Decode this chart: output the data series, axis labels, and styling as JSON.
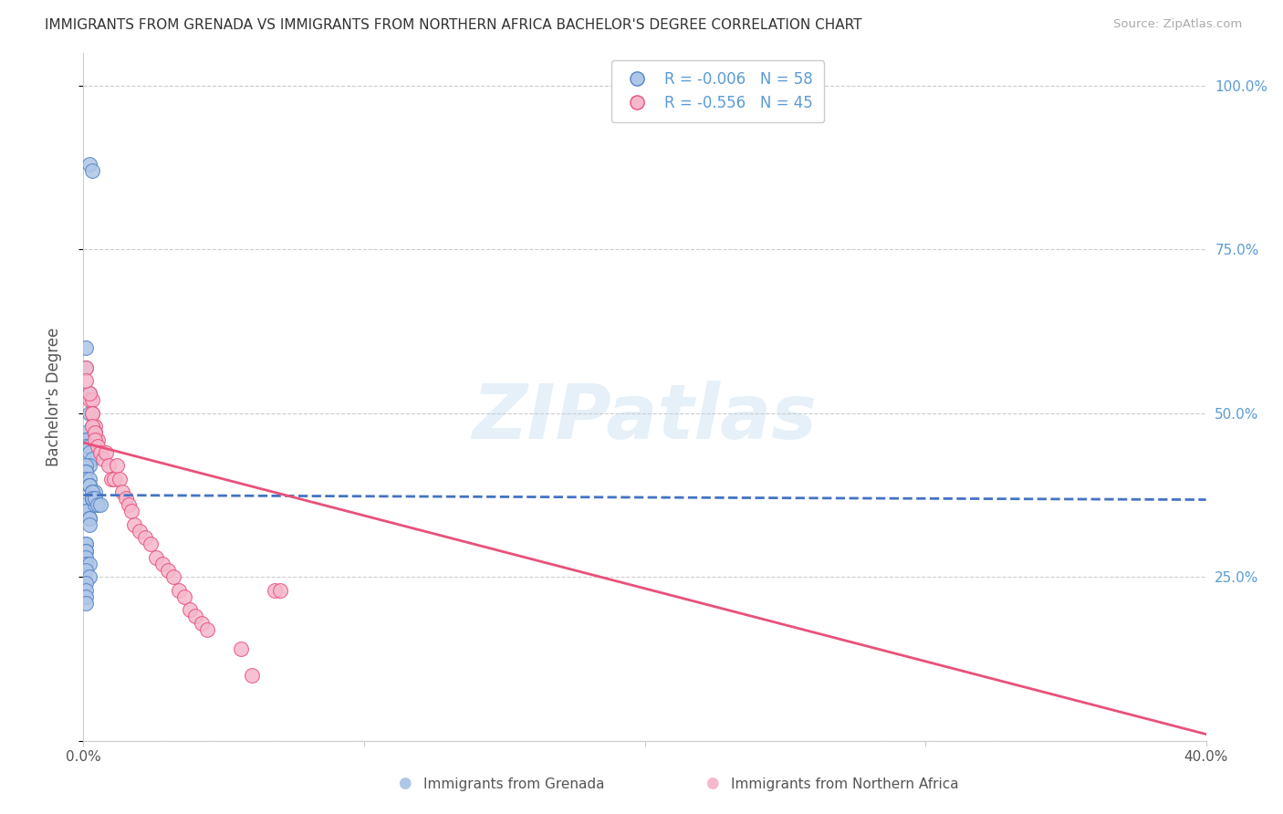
{
  "title": "IMMIGRANTS FROM GRENADA VS IMMIGRANTS FROM NORTHERN AFRICA BACHELOR'S DEGREE CORRELATION CHART",
  "source": "Source: ZipAtlas.com",
  "ylabel": "Bachelor's Degree",
  "legend_label1": "Immigrants from Grenada",
  "legend_label2": "Immigrants from Northern Africa",
  "R1": -0.006,
  "N1": 58,
  "R2": -0.556,
  "N2": 45,
  "color1_face": "#aec6e8",
  "color1_edge": "#5585c5",
  "color2_face": "#f5b8cc",
  "color2_edge": "#e8517a",
  "line_color1": "#4472c4",
  "line_color2": "#e8517a",
  "right_axis_color": "#5b9bd5",
  "title_color": "#333333",
  "source_color": "#aaaaaa",
  "xlim_min": 0.0,
  "xlim_max": 0.4,
  "ylim_min": 0.0,
  "ylim_max": 1.05,
  "watermark": "ZIPatlas",
  "background_color": "#ffffff",
  "grid_color": "#cccccc",
  "blue_x": [
    0.002,
    0.003,
    0.001,
    0.001,
    0.002,
    0.002,
    0.003,
    0.001,
    0.001,
    0.002,
    0.001,
    0.001,
    0.002,
    0.002,
    0.003,
    0.002,
    0.001,
    0.001,
    0.001,
    0.001,
    0.001,
    0.002,
    0.002,
    0.002,
    0.002,
    0.003,
    0.003,
    0.004,
    0.004,
    0.005,
    0.001,
    0.001,
    0.001,
    0.002,
    0.002,
    0.002,
    0.002,
    0.003,
    0.003,
    0.004,
    0.001,
    0.001,
    0.001,
    0.001,
    0.001,
    0.001,
    0.002,
    0.001,
    0.002,
    0.001,
    0.001,
    0.001,
    0.001,
    0.003,
    0.003,
    0.004,
    0.005,
    0.006
  ],
  "blue_y": [
    0.88,
    0.87,
    0.6,
    0.57,
    0.53,
    0.5,
    0.48,
    0.47,
    0.46,
    0.46,
    0.46,
    0.45,
    0.45,
    0.44,
    0.43,
    0.42,
    0.42,
    0.41,
    0.41,
    0.4,
    0.4,
    0.4,
    0.39,
    0.39,
    0.39,
    0.38,
    0.38,
    0.38,
    0.37,
    0.36,
    0.36,
    0.35,
    0.35,
    0.34,
    0.34,
    0.34,
    0.33,
    0.37,
    0.37,
    0.36,
    0.3,
    0.3,
    0.29,
    0.29,
    0.28,
    0.27,
    0.27,
    0.26,
    0.25,
    0.24,
    0.23,
    0.22,
    0.21,
    0.38,
    0.37,
    0.37,
    0.36,
    0.36
  ],
  "pink_x": [
    0.001,
    0.002,
    0.003,
    0.003,
    0.004,
    0.004,
    0.004,
    0.005,
    0.002,
    0.001,
    0.003,
    0.003,
    0.004,
    0.004,
    0.005,
    0.006,
    0.007,
    0.008,
    0.009,
    0.01,
    0.011,
    0.012,
    0.013,
    0.014,
    0.015,
    0.016,
    0.017,
    0.018,
    0.02,
    0.022,
    0.024,
    0.026,
    0.028,
    0.03,
    0.032,
    0.034,
    0.036,
    0.038,
    0.04,
    0.042,
    0.044,
    0.068,
    0.056,
    0.06,
    0.07
  ],
  "pink_y": [
    0.57,
    0.52,
    0.52,
    0.5,
    0.48,
    0.47,
    0.47,
    0.46,
    0.53,
    0.55,
    0.5,
    0.48,
    0.47,
    0.46,
    0.45,
    0.44,
    0.43,
    0.44,
    0.42,
    0.4,
    0.4,
    0.42,
    0.4,
    0.38,
    0.37,
    0.36,
    0.35,
    0.33,
    0.32,
    0.31,
    0.3,
    0.28,
    0.27,
    0.26,
    0.25,
    0.23,
    0.22,
    0.2,
    0.19,
    0.18,
    0.17,
    0.23,
    0.14,
    0.1,
    0.23
  ],
  "line1_x0": 0.0,
  "line1_x1": 0.4,
  "line1_y0": 0.375,
  "line1_y1": 0.368,
  "line2_x0": 0.0,
  "line2_x1": 0.4,
  "line2_y0": 0.455,
  "line2_y1": 0.01
}
